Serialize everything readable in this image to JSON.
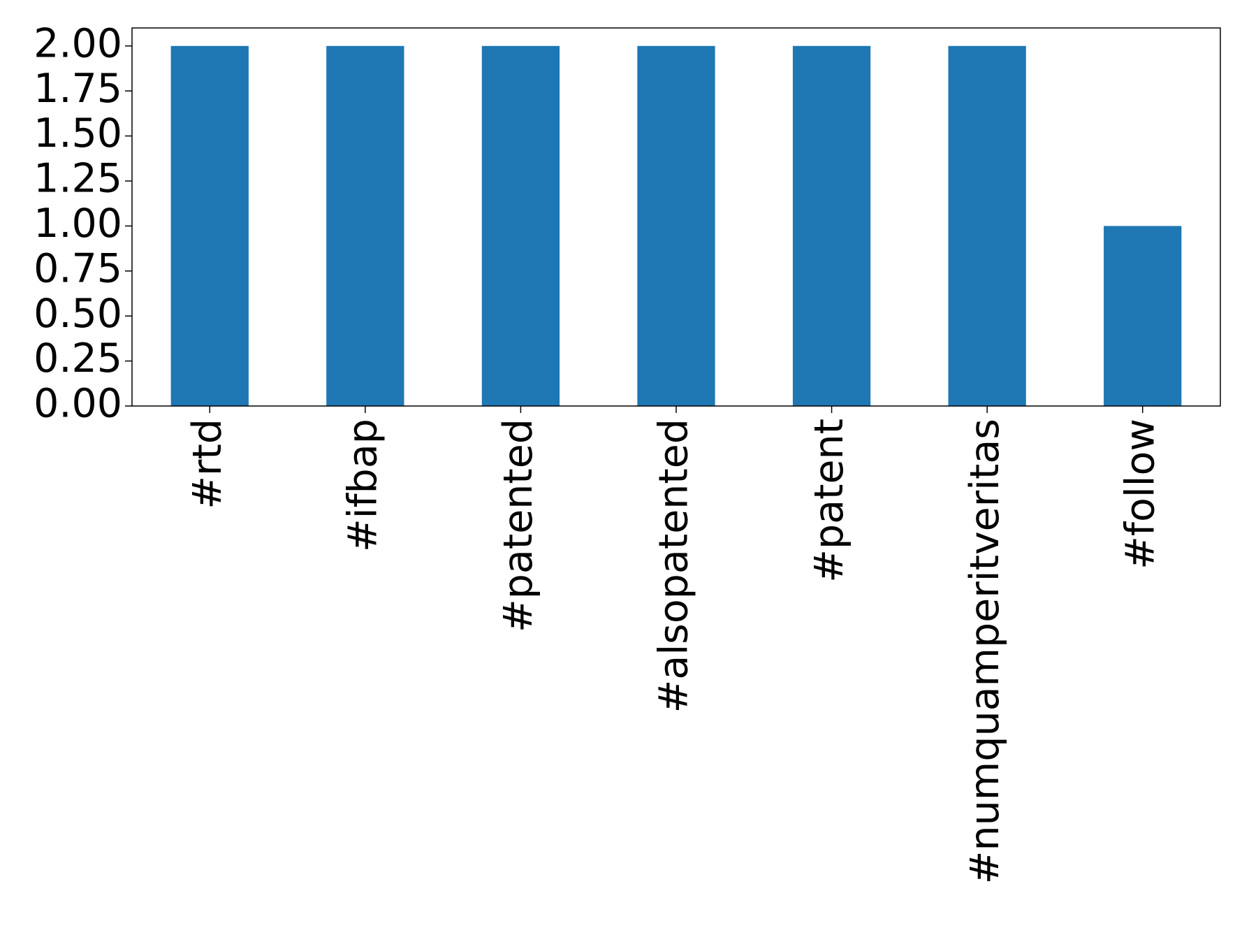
{
  "chart_data": {
    "type": "bar",
    "categories": [
      "#rtd",
      "#ifbap",
      "#patented",
      "#alsopatented",
      "#patent",
      "#numquamperitveritas",
      "#follow"
    ],
    "values": [
      2,
      2,
      2,
      2,
      2,
      2,
      1
    ],
    "color": "#1f77b4",
    "ylim": [
      0,
      2.1
    ],
    "yticks": [
      {
        "value": 0,
        "label": "0.00"
      },
      {
        "value": 0.25,
        "label": "0.25"
      },
      {
        "value": 0.5,
        "label": "0.50"
      },
      {
        "value": 0.75,
        "label": "0.75"
      },
      {
        "value": 1,
        "label": "1.00"
      },
      {
        "value": 1.25,
        "label": "1.25"
      },
      {
        "value": 1.5,
        "label": "1.50"
      },
      {
        "value": 1.75,
        "label": "1.75"
      },
      {
        "value": 2,
        "label": "2.00"
      }
    ],
    "grid": false
  }
}
